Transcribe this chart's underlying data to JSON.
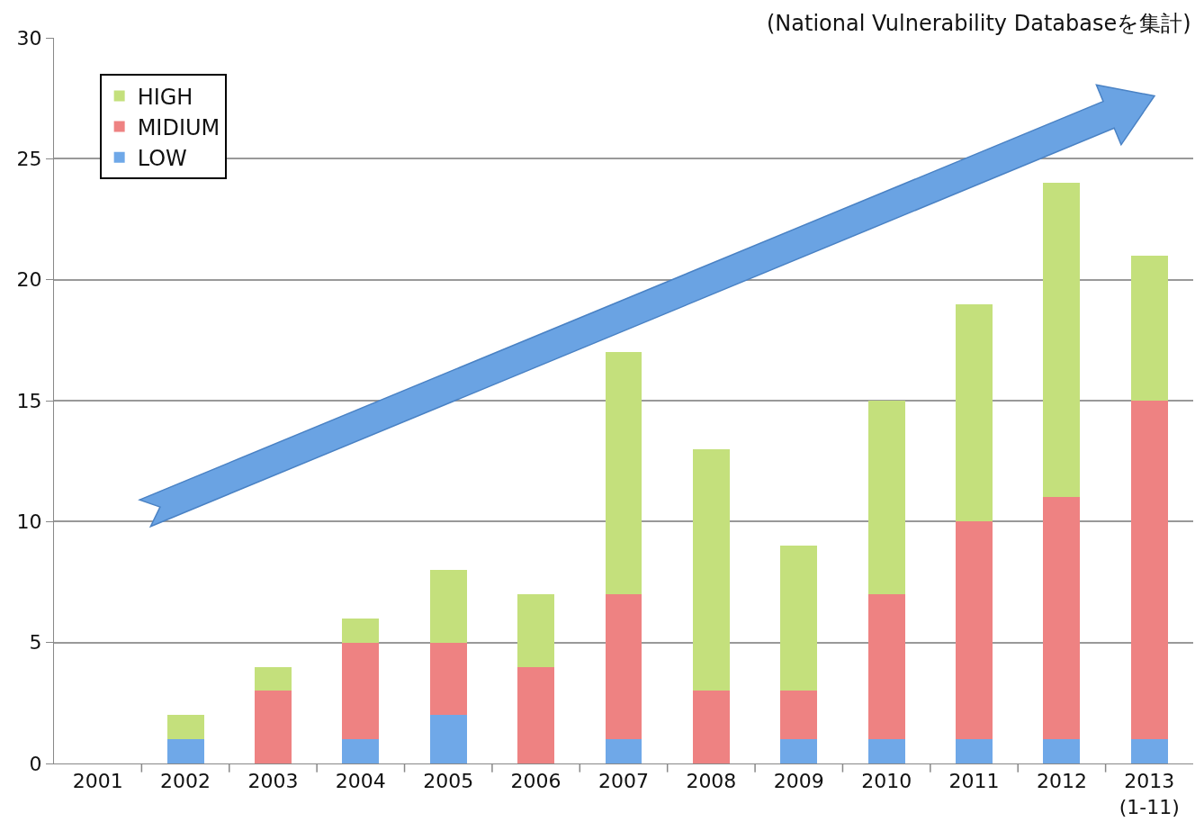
{
  "chart_data": {
    "type": "bar",
    "stacked": true,
    "annotations": [
      "(National Vulnerability Databaseを集計)"
    ],
    "categories": [
      "2001",
      "2002",
      "2003",
      "2004",
      "2005",
      "2006",
      "2007",
      "2008",
      "2009",
      "2010",
      "2011",
      "2012",
      "2013\n(1-11)"
    ],
    "series": [
      {
        "name": "LOW",
        "color": "#6fa8e8",
        "values": [
          0,
          1,
          0,
          1,
          2,
          0,
          1,
          0,
          1,
          1,
          1,
          1,
          1
        ]
      },
      {
        "name": "MIDIUM",
        "color": "#ee8282",
        "values": [
          0,
          0,
          3,
          4,
          3,
          4,
          6,
          3,
          2,
          6,
          9,
          10,
          14
        ]
      },
      {
        "name": "HIGH",
        "color": "#c4e07c",
        "values": [
          0,
          1,
          1,
          1,
          3,
          3,
          10,
          10,
          6,
          8,
          9,
          13,
          6
        ]
      }
    ],
    "ylim": [
      0,
      30
    ],
    "yticks": [
      0,
      5,
      10,
      15,
      20,
      25,
      30
    ],
    "grid": "y",
    "legend": "top left"
  }
}
